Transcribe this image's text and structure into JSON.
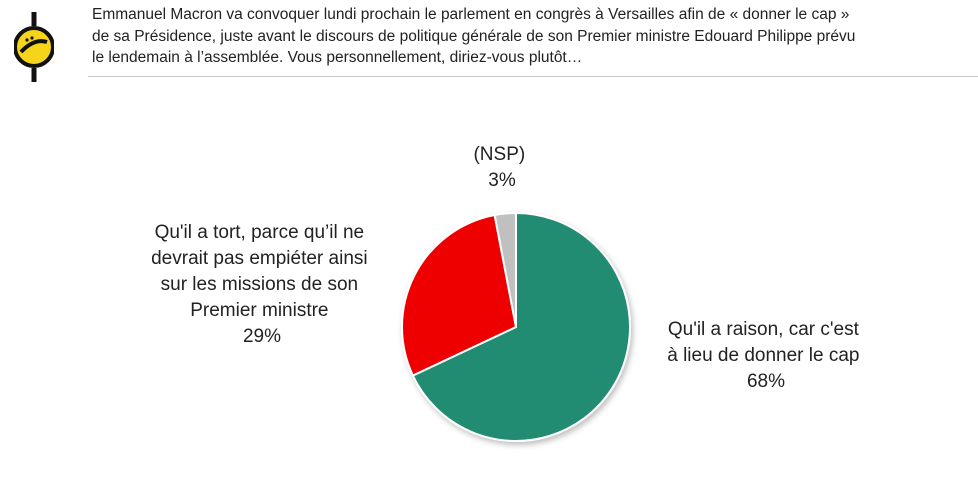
{
  "question": {
    "lines": [
      "Emmanuel Macron va convoquer lundi prochain le parlement en congrès à Versailles afin de « donner le cap »",
      "de sa Présidence, juste avant le discours de politique générale de son Premier ministre Edouard Philippe prévu",
      "le lendemain à l’assemblée. Vous personnellement, diriez-vous plutôt…"
    ]
  },
  "logo": {
    "icon": "yellow-circle-logo-icon",
    "color": "#f5d41a"
  },
  "chart_data": {
    "type": "pie",
    "title": "",
    "start_angle_deg": 0,
    "direction": "clockwise",
    "slices": [
      {
        "label_lines": [
          "Qu'il a raison, car c'est",
          "à lieu de donner le cap"
        ],
        "value_label": "68%",
        "value": 68,
        "color": "#238c72"
      },
      {
        "label_lines": [
          "Qu'il a tort, parce qu’il ne",
          "devrait pas empiéter ainsi",
          "sur les missions de son",
          "Premier ministre"
        ],
        "value_label": "29%",
        "value": 29,
        "color": "#ee0000"
      },
      {
        "label_lines": [
          "(NSP)"
        ],
        "value_label": "3%",
        "value": 3,
        "color": "#c0c0c0"
      }
    ]
  }
}
